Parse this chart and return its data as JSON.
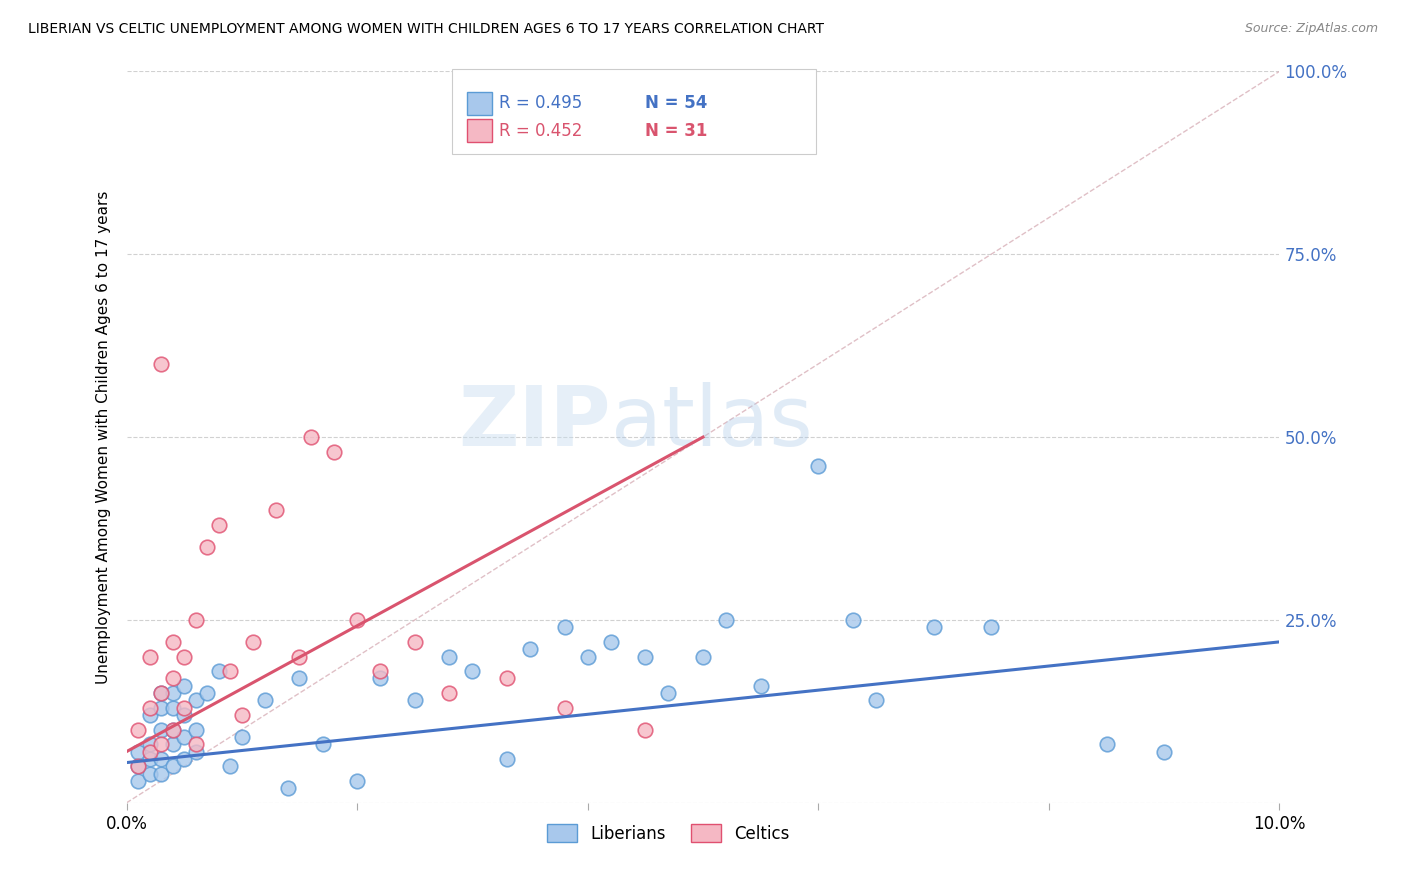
{
  "title": "LIBERIAN VS CELTIC UNEMPLOYMENT AMONG WOMEN WITH CHILDREN AGES 6 TO 17 YEARS CORRELATION CHART",
  "source": "Source: ZipAtlas.com",
  "ylabel": "Unemployment Among Women with Children Ages 6 to 17 years",
  "xlim": [
    0.0,
    0.1
  ],
  "ylim": [
    0.0,
    1.0
  ],
  "yticks": [
    0.0,
    0.25,
    0.5,
    0.75,
    1.0
  ],
  "ytick_labels": [
    "",
    "25.0%",
    "50.0%",
    "75.0%",
    "100.0%"
  ],
  "xticks": [
    0.0,
    0.02,
    0.04,
    0.06,
    0.08,
    0.1
  ],
  "xtick_labels": [
    "0.0%",
    "",
    "",
    "",
    "",
    "10.0%"
  ],
  "liberian_R": 0.495,
  "liberian_N": 54,
  "celtic_R": 0.452,
  "celtic_N": 31,
  "liberian_color": "#a8c8ec",
  "celtic_color": "#f5b8c4",
  "liberian_edge_color": "#5b9bd5",
  "celtic_edge_color": "#e05070",
  "liberian_line_color": "#4472c4",
  "celtic_line_color": "#d9546e",
  "diagonal_color": "#d8b0b8",
  "watermark_zip": "ZIP",
  "watermark_atlas": "atlas",
  "liberian_x": [
    0.001,
    0.001,
    0.001,
    0.002,
    0.002,
    0.002,
    0.002,
    0.003,
    0.003,
    0.003,
    0.003,
    0.003,
    0.004,
    0.004,
    0.004,
    0.004,
    0.004,
    0.005,
    0.005,
    0.005,
    0.005,
    0.006,
    0.006,
    0.006,
    0.007,
    0.008,
    0.009,
    0.01,
    0.012,
    0.014,
    0.015,
    0.017,
    0.02,
    0.022,
    0.025,
    0.028,
    0.03,
    0.033,
    0.035,
    0.038,
    0.04,
    0.042,
    0.045,
    0.047,
    0.05,
    0.052,
    0.055,
    0.06,
    0.063,
    0.065,
    0.07,
    0.075,
    0.085,
    0.09
  ],
  "liberian_y": [
    0.03,
    0.05,
    0.07,
    0.04,
    0.06,
    0.08,
    0.12,
    0.04,
    0.06,
    0.1,
    0.13,
    0.15,
    0.05,
    0.08,
    0.1,
    0.13,
    0.15,
    0.06,
    0.09,
    0.12,
    0.16,
    0.07,
    0.1,
    0.14,
    0.15,
    0.18,
    0.05,
    0.09,
    0.14,
    0.02,
    0.17,
    0.08,
    0.03,
    0.17,
    0.14,
    0.2,
    0.18,
    0.06,
    0.21,
    0.24,
    0.2,
    0.22,
    0.2,
    0.15,
    0.2,
    0.25,
    0.16,
    0.46,
    0.25,
    0.14,
    0.24,
    0.24,
    0.08,
    0.07
  ],
  "celtic_x": [
    0.001,
    0.001,
    0.002,
    0.002,
    0.002,
    0.003,
    0.003,
    0.003,
    0.004,
    0.004,
    0.004,
    0.005,
    0.005,
    0.006,
    0.006,
    0.007,
    0.008,
    0.009,
    0.01,
    0.011,
    0.013,
    0.015,
    0.016,
    0.018,
    0.02,
    0.022,
    0.025,
    0.028,
    0.033,
    0.038,
    0.045
  ],
  "celtic_y": [
    0.05,
    0.1,
    0.07,
    0.13,
    0.2,
    0.08,
    0.15,
    0.6,
    0.1,
    0.17,
    0.22,
    0.13,
    0.2,
    0.08,
    0.25,
    0.35,
    0.38,
    0.18,
    0.12,
    0.22,
    0.4,
    0.2,
    0.5,
    0.48,
    0.25,
    0.18,
    0.22,
    0.15,
    0.17,
    0.13,
    0.1
  ],
  "lib_line": [
    0.0,
    0.055,
    0.1,
    0.22
  ],
  "cel_line": [
    0.0,
    0.07,
    0.05,
    0.5
  ],
  "diag_line": [
    0.0,
    0.0,
    0.1,
    1.0
  ]
}
